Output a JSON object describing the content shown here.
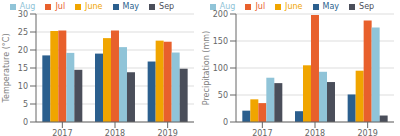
{
  "chart_data": [
    {
      "type": "bar",
      "y_label": "Temperature (°C)",
      "categories": [
        "2017",
        "2018",
        "2019"
      ],
      "series": [
        {
          "name": "May",
          "color": "#2b5f8e",
          "values": [
            18.5,
            19.0,
            16.8
          ]
        },
        {
          "name": "June",
          "color": "#f0a500",
          "values": [
            25.3,
            23.3,
            22.6
          ]
        },
        {
          "name": "Jul",
          "color": "#e8602c",
          "values": [
            25.4,
            25.4,
            22.3
          ]
        },
        {
          "name": "Aug",
          "color": "#90c4d8",
          "values": [
            19.2,
            20.8,
            19.3
          ]
        },
        {
          "name": "Sep",
          "color": "#4a4e5a",
          "values": [
            14.5,
            13.8,
            14.8
          ]
        }
      ],
      "ylim": [
        0,
        30
      ],
      "yticks": [
        0,
        5,
        10,
        15,
        20,
        25,
        30
      ],
      "grid": true,
      "legend": "top"
    },
    {
      "type": "bar",
      "y_label": "Precipitation (mm)",
      "categories": [
        "2017",
        "2018",
        "2019"
      ],
      "series": [
        {
          "name": "May",
          "color": "#2b5f8e",
          "values": [
            21,
            20,
            51
          ]
        },
        {
          "name": "June",
          "color": "#f0a500",
          "values": [
            42,
            105,
            95
          ]
        },
        {
          "name": "Jul",
          "color": "#e8602c",
          "values": [
            35,
            198,
            188
          ]
        },
        {
          "name": "Aug",
          "color": "#90c4d8",
          "values": [
            82,
            93,
            175
          ]
        },
        {
          "name": "Sep",
          "color": "#4a4e5a",
          "values": [
            72,
            74,
            12
          ]
        }
      ],
      "ylim": [
        0,
        200
      ],
      "yticks": [
        0,
        50,
        100,
        150,
        200
      ],
      "grid": true,
      "legend": "top"
    }
  ]
}
